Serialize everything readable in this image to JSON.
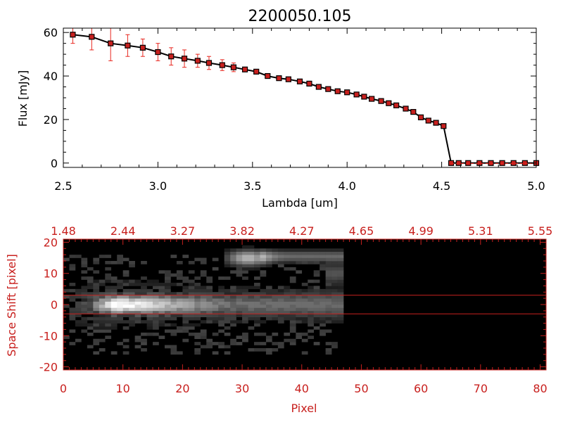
{
  "chart_data": [
    {
      "type": "line",
      "title": "2200050.105",
      "xlabel": "Lambda [um]",
      "ylabel": "Flux [mJy]",
      "xlim": [
        2.5,
        5.0
      ],
      "ylim": [
        -2,
        62
      ],
      "x_ticks": [
        "2.5",
        "3.0",
        "3.5",
        "4.0",
        "4.5",
        "5.0"
      ],
      "y_ticks": [
        "0",
        "20",
        "40",
        "60"
      ],
      "series": [
        {
          "name": "Flux",
          "x": [
            2.55,
            2.65,
            2.75,
            2.84,
            2.92,
            3.0,
            3.07,
            3.14,
            3.21,
            3.27,
            3.34,
            3.4,
            3.46,
            3.52,
            3.58,
            3.64,
            3.69,
            3.75,
            3.8,
            3.85,
            3.9,
            3.95,
            4.0,
            4.05,
            4.09,
            4.13,
            4.18,
            4.22,
            4.26,
            4.31,
            4.35,
            4.39,
            4.43,
            4.47,
            4.51,
            4.55,
            4.59,
            4.64,
            4.7,
            4.76,
            4.82,
            4.88,
            4.94,
            5.0
          ],
          "y": [
            59,
            58,
            55,
            54,
            53,
            51,
            49,
            48,
            47,
            46,
            45,
            44,
            43,
            42,
            40,
            39,
            38.5,
            37.5,
            36.5,
            35,
            34,
            33,
            32.5,
            31.5,
            30.5,
            29.5,
            28.5,
            27.5,
            26.5,
            25,
            23.5,
            21,
            19.5,
            18.5,
            17,
            0,
            0,
            0,
            0,
            0,
            0,
            0,
            0,
            0
          ],
          "errors": [
            4,
            6,
            8,
            5,
            4,
            4,
            4,
            4,
            3,
            3,
            2.5,
            2,
            1,
            1,
            1,
            0.5,
            0.5,
            0.5,
            0.5,
            0.5,
            0.5,
            0.5,
            0.5,
            0.5,
            0.5,
            0.5,
            0.5,
            0.5,
            0.5,
            0.5,
            0.5,
            0.5,
            0.5,
            0.5,
            0.5,
            0,
            0,
            0,
            0,
            0,
            0,
            0,
            0,
            0
          ],
          "line_color": "#000000",
          "marker_color": "#c8201e",
          "error_color": "#e8261e"
        }
      ]
    },
    {
      "type": "heatmap",
      "title": "",
      "xlabel": "Pixel",
      "ylabel": "Space Shift [pixel]",
      "xlim": [
        0,
        81
      ],
      "ylim": [
        -21,
        21
      ],
      "x_ticks": [
        "0",
        "10",
        "20",
        "30",
        "40",
        "50",
        "60",
        "70",
        "80"
      ],
      "top_ticks": [
        "1.48",
        "2.44",
        "3.27",
        "3.82",
        "4.27",
        "4.65",
        "4.99",
        "5.31",
        "5.55"
      ],
      "y_ticks": [
        "-20",
        "-10",
        "0",
        "10",
        "20"
      ],
      "extraction_lines": [
        3,
        -3
      ],
      "axis_color": "#c8201e",
      "features": [
        {
          "name": "main-trace",
          "x_start": 2,
          "x_end": 47,
          "y_center": 0,
          "peak_x": 10,
          "peak": 1.0
        },
        {
          "name": "upper-blob",
          "x_start": 27,
          "x_end": 47,
          "y_center": 15,
          "peak_x": 31,
          "peak": 0.65
        }
      ]
    }
  ]
}
